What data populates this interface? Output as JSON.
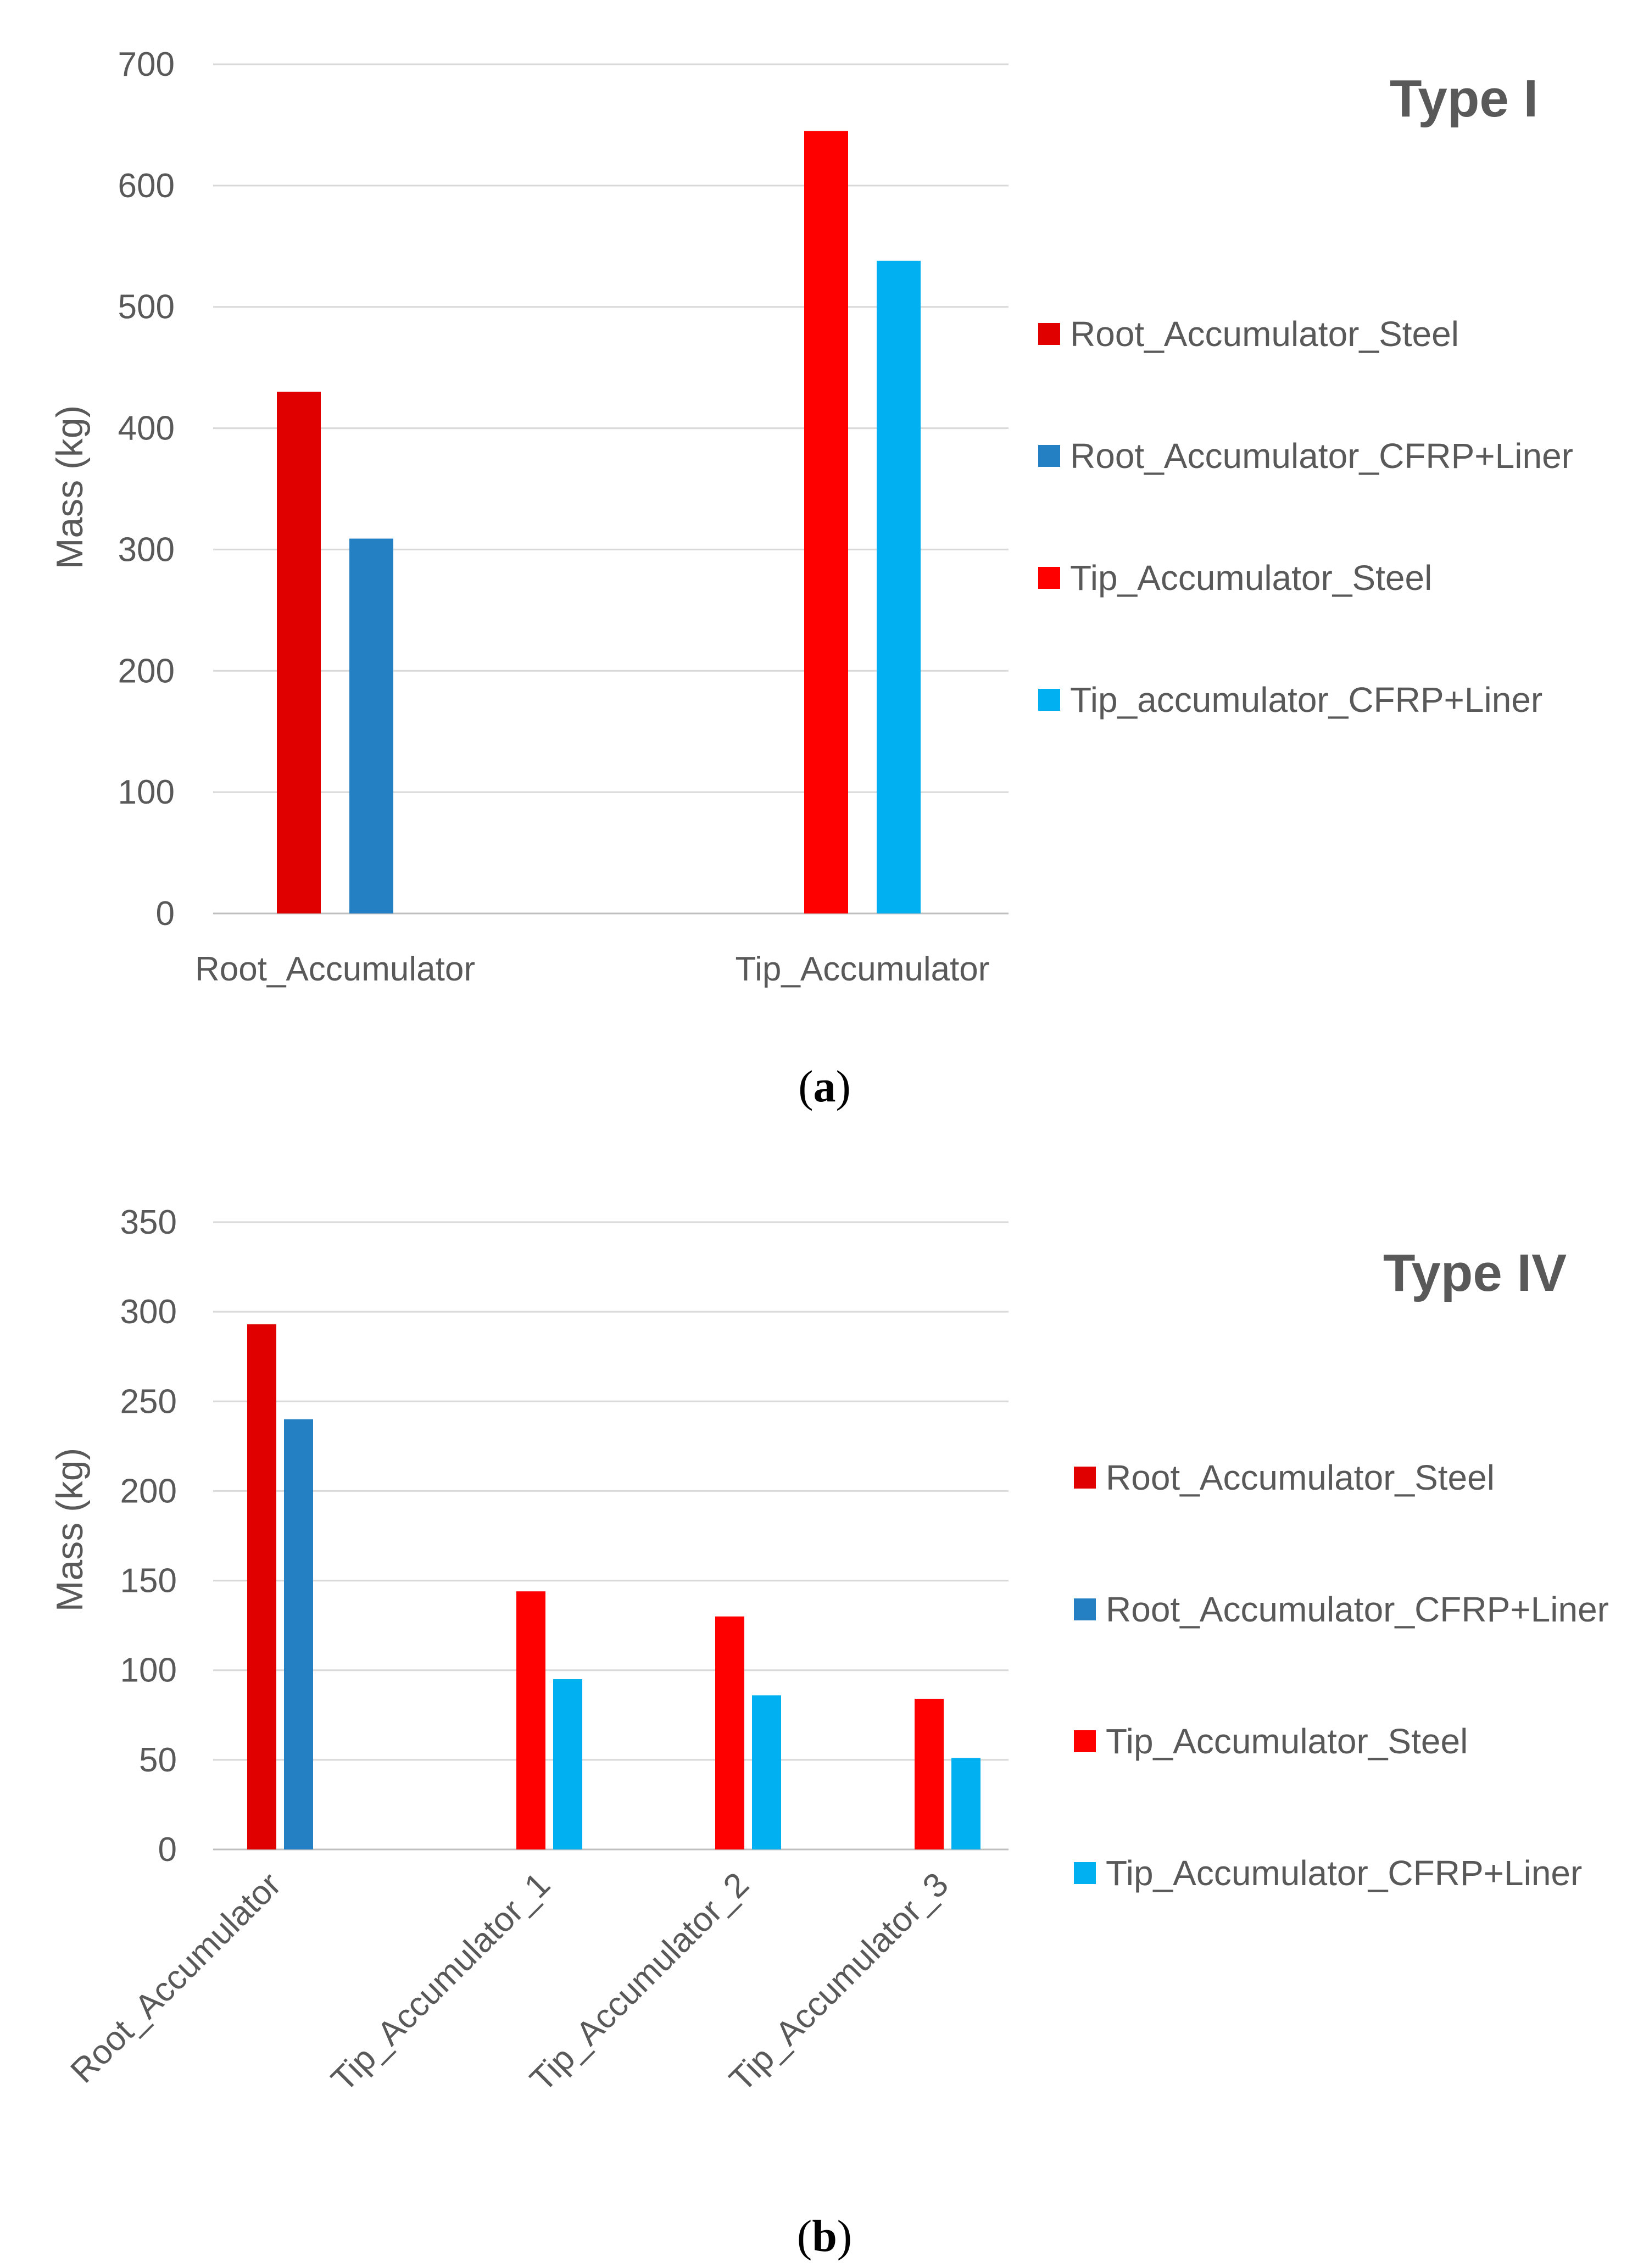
{
  "panels": [
    {
      "label_open": "(",
      "label_letter": "a",
      "label_close": ")"
    },
    {
      "label_open": "(",
      "label_letter": "b",
      "label_close": ")"
    }
  ],
  "chart_data": [
    {
      "type": "bar",
      "title": "Type I",
      "ylabel": "Mass (kg)",
      "xlabel": "",
      "ylim": [
        0,
        700
      ],
      "yticks": [
        0,
        100,
        200,
        300,
        400,
        500,
        600,
        700
      ],
      "grid": true,
      "legend_position": "right",
      "categories": [
        "Root_Accumulator",
        "Tip_Accumulator"
      ],
      "series": [
        {
          "name": "Root_Accumulator_Steel",
          "color": "#e00000",
          "values": [
            430,
            null
          ]
        },
        {
          "name": "Root_Accumulator_CFRP+Liner",
          "color": "#2480c2",
          "values": [
            309,
            null
          ]
        },
        {
          "name": "Tip_Accumulator_Steel",
          "color": "#ff0000",
          "values": [
            null,
            645
          ]
        },
        {
          "name": "Tip_accumulator_CFRP+Liner",
          "color": "#00b0f0",
          "values": [
            null,
            538
          ]
        }
      ]
    },
    {
      "type": "bar",
      "title": "Type IV",
      "ylabel": "Mass (kg)",
      "xlabel": "",
      "ylim": [
        0,
        350
      ],
      "yticks": [
        0,
        50,
        100,
        150,
        200,
        250,
        300,
        350
      ],
      "grid": true,
      "legend_position": "right",
      "categories": [
        "Root_Accumulator",
        "Tip_Accumulator_1",
        "Tip_Accumulator_2",
        "Tip_Accumulator_3"
      ],
      "series": [
        {
          "name": "Root_Accumulator_Steel",
          "color": "#e00000",
          "values": [
            293,
            null,
            null,
            null
          ]
        },
        {
          "name": "Root_Accumulator_CFRP+Liner",
          "color": "#2480c2",
          "values": [
            240,
            null,
            null,
            null
          ]
        },
        {
          "name": "Tip_Accumulator_Steel",
          "color": "#ff0000",
          "values": [
            null,
            144,
            130,
            84
          ]
        },
        {
          "name": "Tip_Accumulator_CFRP+Liner",
          "color": "#00b0f0",
          "values": [
            null,
            95,
            86,
            51
          ]
        }
      ]
    }
  ]
}
